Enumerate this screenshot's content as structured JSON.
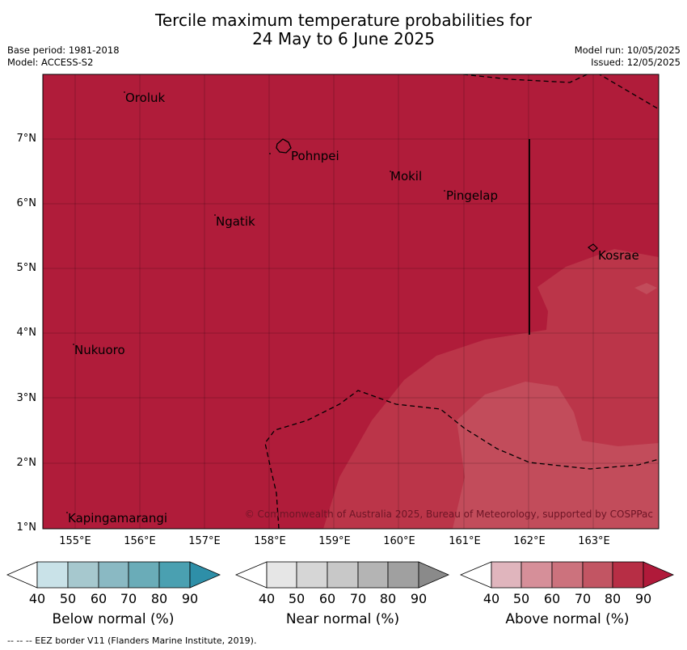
{
  "title_line1": "Tercile maximum temperature probabilities for",
  "title_line2": "24 May to 6 June 2025",
  "meta_left": [
    "Base period: 1981-2018",
    "Model: ACCESS-S2"
  ],
  "meta_right": [
    "Model run: 10/05/2025",
    "Issued: 12/05/2025"
  ],
  "lat_labels": [
    "7°N",
    "6°N",
    "5°N",
    "4°N",
    "3°N",
    "2°N",
    "1°N"
  ],
  "lon_labels": [
    "155°E",
    "156°E",
    "157°E",
    "158°E",
    "159°E",
    "160°E",
    "161°E",
    "162°E",
    "163°E"
  ],
  "places": [
    "Oroluk",
    "Pohnpei",
    "Mokil",
    "Pingelap",
    "Ngatik",
    "Kosrae",
    "Nukuoro",
    "Kapingamarangi"
  ],
  "copyright": "© Commonwealth of Australia 2025, Bureau of Meteorology, supported by COSPPac",
  "colorbars": [
    {
      "label": "Below normal (%)",
      "colors": [
        "#ffffff",
        "#c9e2e8",
        "#a6c8ce",
        "#8ab9c3",
        "#6aacb8",
        "#4aa0b1",
        "#2e8fa8"
      ]
    },
    {
      "label": "Near normal (%)",
      "colors": [
        "#ffffff",
        "#e6e6e6",
        "#d6d6d6",
        "#c8c8c8",
        "#b4b4b4",
        "#a0a0a0",
        "#8a8a8a"
      ]
    },
    {
      "label": "Above normal (%)",
      "colors": [
        "#ffffff",
        "#e0b5bd",
        "#d68f99",
        "#cc727d",
        "#c25563",
        "#b72e45",
        "#b01a3a"
      ]
    }
  ],
  "tick_values": [
    "40",
    "50",
    "60",
    "70",
    "80",
    "90"
  ],
  "footer": "-- -- -- EEZ border V11 (Flanders Marine Institute, 2019)."
}
